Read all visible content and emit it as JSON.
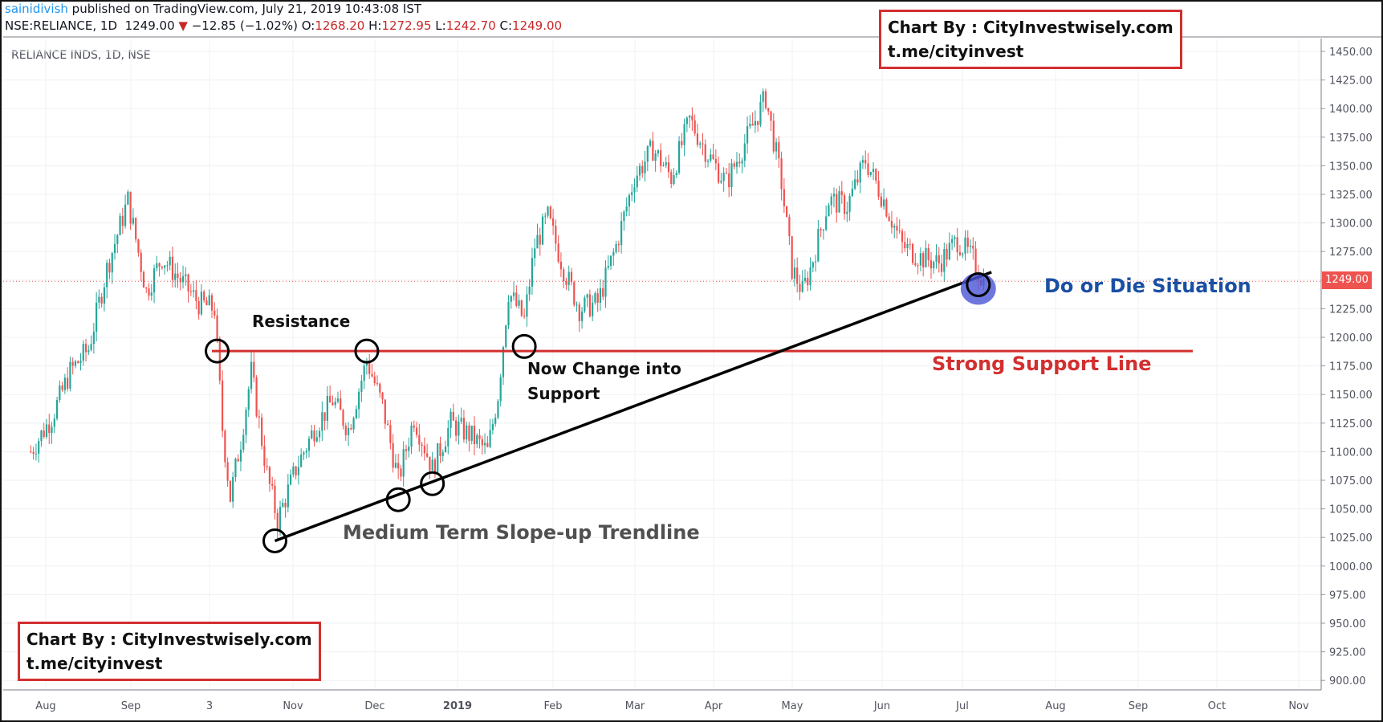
{
  "header": {
    "author": "sainidivish",
    "published": " published on TradingView.com, July 21, 2019 10:43:08 IST",
    "symbol": "NSE:RELIANCE, 1D",
    "last": "1249.00",
    "down_arrow": "▼",
    "change": "−12.85 (−1.02%)",
    "o_label": "O:",
    "o_value": "1268.20",
    "h_label": "H:",
    "h_value": "1272.95",
    "l_label": "L:",
    "l_value": "1242.70",
    "c_label": "C:",
    "c_value": "1249.00"
  },
  "symbol_label": "RELIANCE INDS, 1D, NSE",
  "price_tag": "1249.00",
  "annotations": {
    "resistance": "Resistance",
    "now_change_1": "Now Change into",
    "now_change_2": "Support",
    "strong_support": "Strong Support Line",
    "do_or_die": "Do or Die Situation",
    "trendline": "Medium Term Slope-up Trendline"
  },
  "watermark": {
    "line1": "Chart By : CityInvestwisely.com",
    "line2": "t.me/cityinvest"
  },
  "colors": {
    "up": "#26a69a",
    "down": "#ef5350",
    "support_line": "#d32f2f",
    "trendline": "#000000",
    "do_or_die": "#1a4fa3",
    "highlight_circle": "#4a55d6"
  },
  "chart_data": {
    "type": "candlestick",
    "title": "RELIANCE INDS, 1D, NSE",
    "ylim": [
      890,
      1460
    ],
    "y_ticks": [
      "1450.00",
      "1425.00",
      "1400.00",
      "1375.00",
      "1350.00",
      "1325.00",
      "1300.00",
      "1275.00",
      "1250.00",
      "1225.00",
      "1200.00",
      "1175.00",
      "1150.00",
      "1125.00",
      "1100.00",
      "1075.00",
      "1050.00",
      "1025.00",
      "1000.00",
      "975.00",
      "950.00",
      "925.00",
      "900.00"
    ],
    "x_ticks": [
      "Aug",
      "Sep",
      "3",
      "Nov",
      "Dec",
      "2019",
      "Feb",
      "Mar",
      "Apr",
      "May",
      "Jun",
      "Jul",
      "Aug",
      "Sep",
      "Oct",
      "Nov"
    ],
    "last_price": 1249.0,
    "support_level": 1188,
    "trendline": [
      {
        "date": "2018-10-25",
        "value": 1022
      },
      {
        "date": "2019-07-25",
        "value": 1257
      }
    ],
    "marked_points": [
      {
        "date": "2018-10-03",
        "value": 1188
      },
      {
        "date": "2018-11-29",
        "value": 1188
      },
      {
        "date": "2019-01-28",
        "value": 1192
      },
      {
        "date": "2018-10-25",
        "value": 1022
      },
      {
        "date": "2018-12-11",
        "value": 1058
      },
      {
        "date": "2018-12-24",
        "value": 1072
      },
      {
        "date": "2019-07-20",
        "value": 1246
      }
    ],
    "price_path": [
      {
        "date": "2018-07-24",
        "value": 1100
      },
      {
        "date": "2018-08-01",
        "value": 1130
      },
      {
        "date": "2018-08-08",
        "value": 1170
      },
      {
        "date": "2018-08-15",
        "value": 1190
      },
      {
        "date": "2018-08-22",
        "value": 1260
      },
      {
        "date": "2018-08-30",
        "value": 1320
      },
      {
        "date": "2018-09-06",
        "value": 1240
      },
      {
        "date": "2018-09-12",
        "value": 1270
      },
      {
        "date": "2018-09-19",
        "value": 1250
      },
      {
        "date": "2018-09-26",
        "value": 1230
      },
      {
        "date": "2018-10-02",
        "value": 1225
      },
      {
        "date": "2018-10-05",
        "value": 1120
      },
      {
        "date": "2018-10-08",
        "value": 1060
      },
      {
        "date": "2018-10-12",
        "value": 1110
      },
      {
        "date": "2018-10-16",
        "value": 1170
      },
      {
        "date": "2018-10-22",
        "value": 1080
      },
      {
        "date": "2018-10-26",
        "value": 1040
      },
      {
        "date": "2018-11-02",
        "value": 1085
      },
      {
        "date": "2018-11-09",
        "value": 1120
      },
      {
        "date": "2018-11-16",
        "value": 1145
      },
      {
        "date": "2018-11-22",
        "value": 1120
      },
      {
        "date": "2018-11-29",
        "value": 1180
      },
      {
        "date": "2018-12-05",
        "value": 1140
      },
      {
        "date": "2018-12-11",
        "value": 1075
      },
      {
        "date": "2018-12-17",
        "value": 1130
      },
      {
        "date": "2018-12-24",
        "value": 1085
      },
      {
        "date": "2018-12-31",
        "value": 1125
      },
      {
        "date": "2019-01-07",
        "value": 1115
      },
      {
        "date": "2019-01-14",
        "value": 1100
      },
      {
        "date": "2019-01-18",
        "value": 1150
      },
      {
        "date": "2019-01-22",
        "value": 1240
      },
      {
        "date": "2019-01-28",
        "value": 1215
      },
      {
        "date": "2019-02-01",
        "value": 1280
      },
      {
        "date": "2019-02-06",
        "value": 1305
      },
      {
        "date": "2019-02-12",
        "value": 1260
      },
      {
        "date": "2019-02-18",
        "value": 1225
      },
      {
        "date": "2019-02-25",
        "value": 1230
      },
      {
        "date": "2019-03-04",
        "value": 1280
      },
      {
        "date": "2019-03-11",
        "value": 1340
      },
      {
        "date": "2019-03-18",
        "value": 1365
      },
      {
        "date": "2019-03-25",
        "value": 1340
      },
      {
        "date": "2019-04-01",
        "value": 1390
      },
      {
        "date": "2019-04-08",
        "value": 1360
      },
      {
        "date": "2019-04-15",
        "value": 1335
      },
      {
        "date": "2019-04-22",
        "value": 1370
      },
      {
        "date": "2019-04-30",
        "value": 1410
      },
      {
        "date": "2019-05-06",
        "value": 1335
      },
      {
        "date": "2019-05-10",
        "value": 1260
      },
      {
        "date": "2019-05-14",
        "value": 1240
      },
      {
        "date": "2019-05-17",
        "value": 1260
      },
      {
        "date": "2019-05-24",
        "value": 1320
      },
      {
        "date": "2019-05-31",
        "value": 1315
      },
      {
        "date": "2019-06-07",
        "value": 1355
      },
      {
        "date": "2019-06-14",
        "value": 1320
      },
      {
        "date": "2019-06-21",
        "value": 1280
      },
      {
        "date": "2019-06-28",
        "value": 1270
      },
      {
        "date": "2019-07-05",
        "value": 1265
      },
      {
        "date": "2019-07-12",
        "value": 1285
      },
      {
        "date": "2019-07-18",
        "value": 1268
      },
      {
        "date": "2019-07-22",
        "value": 1249
      }
    ]
  }
}
